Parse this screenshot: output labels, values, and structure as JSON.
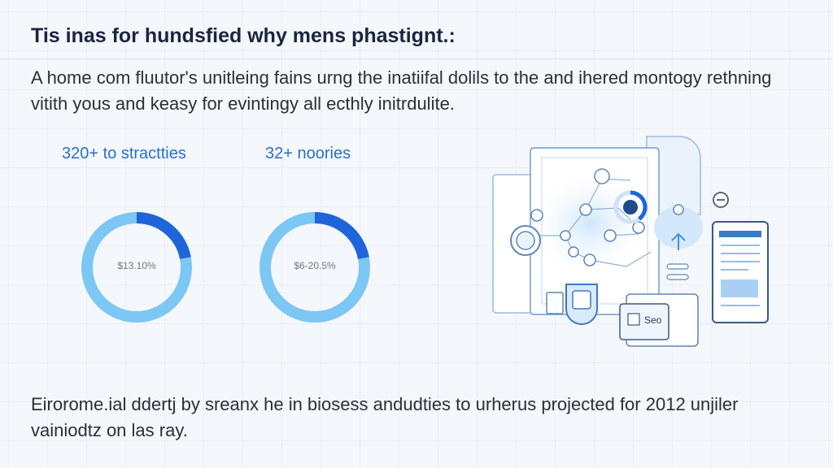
{
  "page": {
    "title": "Tis inas for hundsfied why mens phastignt.:",
    "intro": "A home com fluutor's unitleing fains urng the inatiifal dolils to the and ihered montogy rethning vitith yous and keasy for evintingy all ecthly initrdulite.",
    "footer": "Eirorome.ial ddertj by sreanx he in biosess andudties to urherus projected for 2012 unjiler vainiodtz on las ray."
  },
  "stats": [
    {
      "label": "320+ to stractties",
      "ring_text": "$13.10%",
      "fill": 0.22,
      "color": "#1f64d8",
      "track": "#7cc7f4"
    },
    {
      "label": "32+ noories",
      "ring_text": "$6-20.5%",
      "fill": 0.22,
      "color": "#1f64d8",
      "track": "#7cc7f4"
    }
  ],
  "illustration": {
    "icons": [
      "document-icon",
      "network-hub-icon",
      "donut-chart-icon",
      "upload-icon",
      "phone-icon",
      "circle-minus-icon",
      "card-icon"
    ],
    "card_text": "Seo"
  },
  "colors": {
    "accent": "#2b6fc9",
    "line": "#9bbbe0",
    "ring_track": "#7cc7f4",
    "ring_fill": "#1f64d8"
  }
}
